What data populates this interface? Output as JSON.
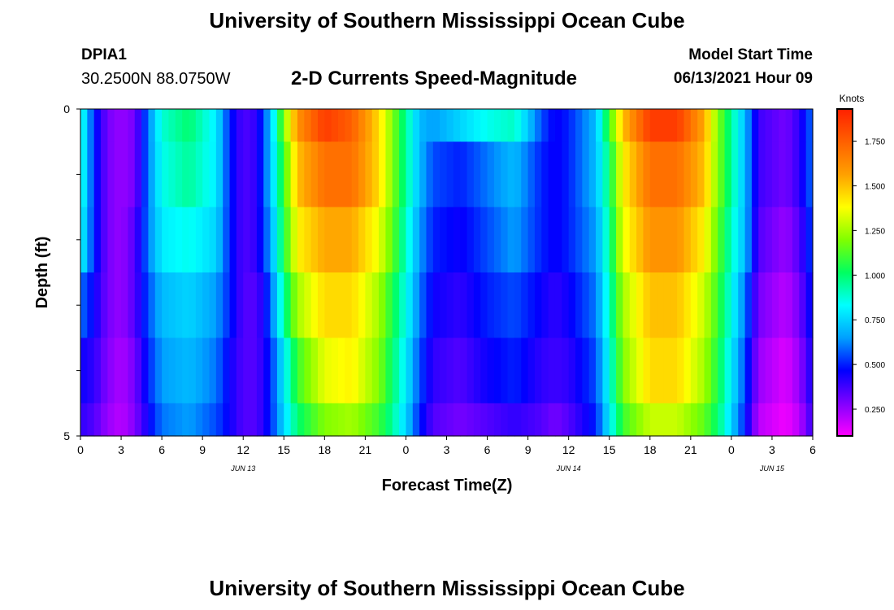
{
  "header": {
    "title": "University of Southern Mississippi Ocean Cube",
    "station_id": "DPIA1",
    "coordinates": "30.2500N  88.0750W",
    "chart_subtitle": "2-D Currents Speed-Magnitude",
    "model_start_label": "Model Start Time",
    "model_start_value": "06/13/2021 Hour 09"
  },
  "footer": {
    "title": "University of Southern Mississippi Ocean Cube"
  },
  "colorbar": {
    "unit_label": "Knots",
    "tick_labels": [
      "1.750",
      "1.500",
      "1.250",
      "1.000",
      "0.750",
      "0.500",
      "0.250"
    ],
    "tick_values": [
      1.75,
      1.5,
      1.25,
      1.0,
      0.75,
      0.5,
      0.25
    ],
    "range": [
      0.1,
      1.93
    ],
    "colors": [
      "#ff00ff",
      "#8000ff",
      "#0000ff",
      "#00a0ff",
      "#00ffff",
      "#00ff60",
      "#80ff00",
      "#ffff00",
      "#ffa000",
      "#ff6000",
      "#ff2000"
    ]
  },
  "chart_data": {
    "type": "heatmap",
    "title": "2-D Currents Speed-Magnitude",
    "xlabel": "Forecast Time(Z)",
    "ylabel": "Depth (ft)",
    "x_range": [
      0,
      54
    ],
    "y_range": [
      0,
      5
    ],
    "x_tick_labels": [
      "0",
      "3",
      "6",
      "9",
      "12",
      "15",
      "18",
      "21",
      "0",
      "3",
      "6",
      "9",
      "12",
      "15",
      "18",
      "21",
      "0",
      "3",
      "6"
    ],
    "y_tick_labels": [
      "0",
      "5"
    ],
    "date_labels": [
      {
        "label": "JUN 13",
        "hour": 12
      },
      {
        "label": "JUN 14",
        "hour": 36
      },
      {
        "label": "JUN 15",
        "hour": 51
      }
    ],
    "depth_rows": [
      {
        "depth_range": [
          0.0,
          0.5
        ],
        "knots_at_hour": [
          [
            0,
            0.9
          ],
          [
            1,
            0.5
          ],
          [
            2,
            0.3
          ],
          [
            3,
            0.25
          ],
          [
            4,
            0.3
          ],
          [
            5,
            0.6
          ],
          [
            6,
            0.88
          ],
          [
            8,
            1.0
          ],
          [
            10,
            0.8
          ],
          [
            11,
            0.5
          ],
          [
            12,
            0.35
          ],
          [
            13,
            0.4
          ],
          [
            14,
            0.7
          ],
          [
            15,
            1.2
          ],
          [
            16,
            1.6
          ],
          [
            18,
            1.85
          ],
          [
            20,
            1.75
          ],
          [
            22,
            1.45
          ],
          [
            23,
            1.2
          ],
          [
            24,
            0.95
          ],
          [
            25,
            0.7
          ],
          [
            26,
            0.65
          ],
          [
            28,
            0.75
          ],
          [
            30,
            0.85
          ],
          [
            32,
            0.9
          ],
          [
            34,
            0.55
          ],
          [
            35,
            0.45
          ],
          [
            36,
            0.5
          ],
          [
            38,
            0.7
          ],
          [
            39,
            1.1
          ],
          [
            40,
            1.5
          ],
          [
            42,
            1.85
          ],
          [
            44,
            1.85
          ],
          [
            46,
            1.55
          ],
          [
            47,
            1.2
          ],
          [
            48,
            0.95
          ],
          [
            49,
            0.7
          ],
          [
            50,
            0.38
          ],
          [
            52,
            0.3
          ],
          [
            53,
            0.4
          ],
          [
            54,
            0.6
          ]
        ]
      },
      {
        "depth_range": [
          0.5,
          1.5
        ],
        "knots_at_hour": [
          [
            0,
            0.9
          ],
          [
            1,
            0.5
          ],
          [
            2,
            0.3
          ],
          [
            3,
            0.25
          ],
          [
            4,
            0.3
          ],
          [
            5,
            0.6
          ],
          [
            6,
            0.85
          ],
          [
            8,
            0.95
          ],
          [
            10,
            0.8
          ],
          [
            11,
            0.5
          ],
          [
            12,
            0.35
          ],
          [
            13,
            0.4
          ],
          [
            14,
            0.7
          ],
          [
            15,
            1.1
          ],
          [
            16,
            1.5
          ],
          [
            18,
            1.7
          ],
          [
            20,
            1.7
          ],
          [
            22,
            1.45
          ],
          [
            23,
            1.2
          ],
          [
            24,
            0.95
          ],
          [
            25,
            0.7
          ],
          [
            26,
            0.55
          ],
          [
            28,
            0.5
          ],
          [
            30,
            0.6
          ],
          [
            32,
            0.7
          ],
          [
            34,
            0.5
          ],
          [
            35,
            0.45
          ],
          [
            36,
            0.5
          ],
          [
            38,
            0.7
          ],
          [
            39,
            1.0
          ],
          [
            40,
            1.4
          ],
          [
            42,
            1.7
          ],
          [
            44,
            1.7
          ],
          [
            46,
            1.5
          ],
          [
            47,
            1.2
          ],
          [
            48,
            0.95
          ],
          [
            49,
            0.7
          ],
          [
            50,
            0.38
          ],
          [
            52,
            0.3
          ],
          [
            53,
            0.4
          ],
          [
            54,
            0.6
          ]
        ]
      },
      {
        "depth_range": [
          1.5,
          2.5
        ],
        "knots_at_hour": [
          [
            0,
            0.85
          ],
          [
            1,
            0.5
          ],
          [
            2,
            0.3
          ],
          [
            3,
            0.25
          ],
          [
            4,
            0.35
          ],
          [
            5,
            0.6
          ],
          [
            6,
            0.8
          ],
          [
            8,
            0.85
          ],
          [
            10,
            0.75
          ],
          [
            11,
            0.5
          ],
          [
            12,
            0.35
          ],
          [
            13,
            0.4
          ],
          [
            14,
            0.65
          ],
          [
            15,
            1.05
          ],
          [
            16,
            1.4
          ],
          [
            18,
            1.55
          ],
          [
            20,
            1.55
          ],
          [
            22,
            1.35
          ],
          [
            23,
            1.15
          ],
          [
            24,
            0.9
          ],
          [
            25,
            0.65
          ],
          [
            26,
            0.5
          ],
          [
            28,
            0.45
          ],
          [
            30,
            0.55
          ],
          [
            32,
            0.65
          ],
          [
            34,
            0.5
          ],
          [
            35,
            0.45
          ],
          [
            36,
            0.5
          ],
          [
            38,
            0.65
          ],
          [
            39,
            0.95
          ],
          [
            40,
            1.35
          ],
          [
            42,
            1.6
          ],
          [
            44,
            1.6
          ],
          [
            46,
            1.4
          ],
          [
            47,
            1.15
          ],
          [
            48,
            0.9
          ],
          [
            49,
            0.7
          ],
          [
            50,
            0.35
          ],
          [
            52,
            0.25
          ],
          [
            53,
            0.35
          ],
          [
            54,
            0.55
          ]
        ]
      },
      {
        "depth_range": [
          2.5,
          3.5
        ],
        "knots_at_hour": [
          [
            0,
            0.6
          ],
          [
            1,
            0.45
          ],
          [
            2,
            0.3
          ],
          [
            3,
            0.25
          ],
          [
            4,
            0.35
          ],
          [
            5,
            0.55
          ],
          [
            6,
            0.7
          ],
          [
            8,
            0.75
          ],
          [
            10,
            0.65
          ],
          [
            11,
            0.5
          ],
          [
            12,
            0.35
          ],
          [
            13,
            0.35
          ],
          [
            14,
            0.55
          ],
          [
            15,
            0.95
          ],
          [
            16,
            1.25
          ],
          [
            18,
            1.45
          ],
          [
            20,
            1.45
          ],
          [
            22,
            1.25
          ],
          [
            23,
            1.05
          ],
          [
            24,
            0.85
          ],
          [
            25,
            0.6
          ],
          [
            26,
            0.45
          ],
          [
            28,
            0.4
          ],
          [
            30,
            0.5
          ],
          [
            32,
            0.55
          ],
          [
            34,
            0.45
          ],
          [
            35,
            0.4
          ],
          [
            36,
            0.45
          ],
          [
            38,
            0.6
          ],
          [
            39,
            0.9
          ],
          [
            40,
            1.25
          ],
          [
            42,
            1.5
          ],
          [
            44,
            1.5
          ],
          [
            46,
            1.3
          ],
          [
            47,
            1.1
          ],
          [
            48,
            0.85
          ],
          [
            49,
            0.6
          ],
          [
            50,
            0.3
          ],
          [
            52,
            0.2
          ],
          [
            53,
            0.3
          ],
          [
            54,
            0.5
          ]
        ]
      },
      {
        "depth_range": [
          3.5,
          4.5
        ],
        "knots_at_hour": [
          [
            0,
            0.45
          ],
          [
            1,
            0.4
          ],
          [
            2,
            0.28
          ],
          [
            3,
            0.22
          ],
          [
            4,
            0.3
          ],
          [
            5,
            0.5
          ],
          [
            6,
            0.65
          ],
          [
            8,
            0.7
          ],
          [
            10,
            0.6
          ],
          [
            11,
            0.45
          ],
          [
            12,
            0.35
          ],
          [
            13,
            0.35
          ],
          [
            14,
            0.5
          ],
          [
            15,
            0.8
          ],
          [
            16,
            1.1
          ],
          [
            18,
            1.35
          ],
          [
            20,
            1.4
          ],
          [
            22,
            1.2
          ],
          [
            23,
            1.0
          ],
          [
            24,
            0.8
          ],
          [
            25,
            0.55
          ],
          [
            26,
            0.4
          ],
          [
            28,
            0.35
          ],
          [
            30,
            0.45
          ],
          [
            32,
            0.5
          ],
          [
            34,
            0.4
          ],
          [
            35,
            0.38
          ],
          [
            36,
            0.4
          ],
          [
            38,
            0.55
          ],
          [
            39,
            0.85
          ],
          [
            40,
            1.2
          ],
          [
            42,
            1.45
          ],
          [
            44,
            1.45
          ],
          [
            46,
            1.25
          ],
          [
            47,
            1.05
          ],
          [
            48,
            0.8
          ],
          [
            49,
            0.55
          ],
          [
            50,
            0.25
          ],
          [
            52,
            0.15
          ],
          [
            53,
            0.25
          ],
          [
            54,
            0.45
          ]
        ]
      },
      {
        "depth_range": [
          4.5,
          5.0
        ],
        "knots_at_hour": [
          [
            0,
            0.4
          ],
          [
            1,
            0.35
          ],
          [
            2,
            0.25
          ],
          [
            3,
            0.2
          ],
          [
            4,
            0.28
          ],
          [
            5,
            0.45
          ],
          [
            6,
            0.6
          ],
          [
            8,
            0.65
          ],
          [
            10,
            0.55
          ],
          [
            11,
            0.45
          ],
          [
            12,
            0.35
          ],
          [
            13,
            0.35
          ],
          [
            14,
            0.5
          ],
          [
            15,
            0.75
          ],
          [
            16,
            1.0
          ],
          [
            18,
            1.2
          ],
          [
            20,
            1.25
          ],
          [
            22,
            1.1
          ],
          [
            23,
            0.95
          ],
          [
            24,
            0.75
          ],
          [
            25,
            0.5
          ],
          [
            26,
            0.35
          ],
          [
            28,
            0.3
          ],
          [
            30,
            0.35
          ],
          [
            32,
            0.4
          ],
          [
            34,
            0.35
          ],
          [
            35,
            0.3
          ],
          [
            36,
            0.35
          ],
          [
            38,
            0.5
          ],
          [
            39,
            0.8
          ],
          [
            40,
            1.1
          ],
          [
            42,
            1.3
          ],
          [
            44,
            1.3
          ],
          [
            46,
            1.15
          ],
          [
            47,
            1.0
          ],
          [
            48,
            0.75
          ],
          [
            49,
            0.5
          ],
          [
            50,
            0.2
          ],
          [
            52,
            0.12
          ],
          [
            53,
            0.2
          ],
          [
            54,
            0.4
          ]
        ]
      }
    ]
  }
}
